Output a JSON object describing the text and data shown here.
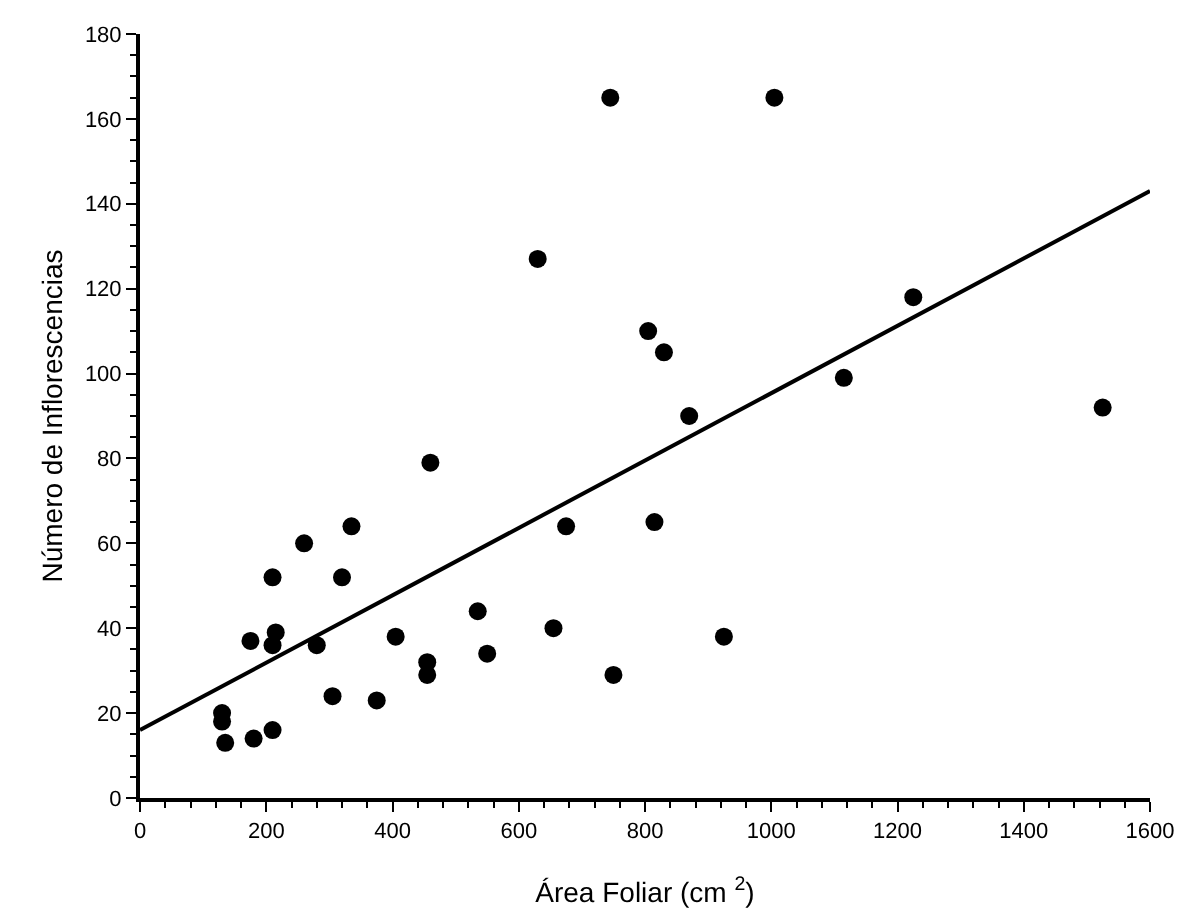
{
  "chart_data": {
    "type": "scatter",
    "xlabel": "Área Foliar (cm $^{2}$)",
    "ylabel": "Número de Inflorescencias",
    "xlim": [
      0,
      1600
    ],
    "xticks": [
      0,
      200,
      400,
      600,
      800,
      1000,
      1200,
      1400,
      1600
    ],
    "ylim": [
      0,
      180
    ],
    "yticks": [
      0,
      20,
      40,
      60,
      80,
      100,
      120,
      140,
      160,
      180
    ],
    "grid": false,
    "marker": "circle",
    "series": [
      {
        "color": "#000000",
        "x": [
          130,
          130,
          135,
          175,
          180,
          210,
          210,
          210,
          215,
          260,
          280,
          305,
          320,
          335,
          375,
          405,
          455,
          455,
          460,
          535,
          550,
          630,
          655,
          675,
          745,
          750,
          805,
          815,
          830,
          870,
          925,
          1005,
          1115,
          1225,
          1525
        ],
        "values": [
          20,
          18,
          13,
          37,
          14,
          16,
          36,
          52,
          39,
          60,
          36,
          24,
          52,
          64,
          23,
          38,
          32,
          29,
          79,
          44,
          34,
          127,
          40,
          64,
          165,
          29,
          110,
          65,
          105,
          90,
          38,
          165,
          99,
          118,
          92
        ]
      },
      {
        "type": "line",
        "color": "#000000",
        "line_style": "solid",
        "marker": "none",
        "x": [
          0,
          1600
        ],
        "values": [
          16,
          143
        ]
      }
    ]
  }
}
